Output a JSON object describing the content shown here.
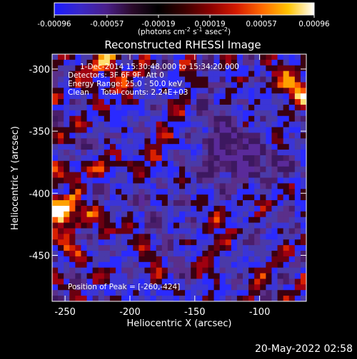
{
  "colorbar": {
    "ticks": [
      "-0.00096",
      "-0.00057",
      "-0.00019",
      "0.00019",
      "0.00057",
      "0.00096"
    ],
    "unit_parts": [
      "(photons cm",
      "-2",
      " s",
      "-1",
      " asec",
      "-2",
      ")"
    ],
    "colors": [
      "#1a1aff",
      "#3a28c8",
      "#4a1f8a",
      "#2a0a2a",
      "#000000",
      "#3a0000",
      "#8a0000",
      "#d41a00",
      "#ff6a00",
      "#ffc400",
      "#ffffff"
    ]
  },
  "image": {
    "title": "Reconstructed RHESSI Image",
    "info": [
      "1-Dec-2014 15:30:48.000 to 15:34:20.000",
      "Detectors: 3F 6F 9F, Att 0",
      "Energy Range: 25.0 - 50.0 keV",
      "Clean     Total counts: 2.24E+03"
    ],
    "peak": "Position of Peak = [-260,-424]",
    "xlabel": "Heliocentric X (arcsec)",
    "ylabel": "Heliocentric Y (arcsec)",
    "xticks": [
      "-250",
      "-200",
      "-150",
      "-100"
    ],
    "yticks": [
      "-300",
      "-350",
      "-400",
      "-450"
    ],
    "footer": "20-May-2022 02:58"
  },
  "chart_data": {
    "type": "heatmap",
    "title": "Reconstructed RHESSI Image",
    "xlabel": "Heliocentric X (arcsec)",
    "ylabel": "Heliocentric Y (arcsec)",
    "xlim": [
      -260,
      -64
    ],
    "ylim": [
      -487,
      -288
    ],
    "xticks": [
      -250,
      -200,
      -150,
      -100
    ],
    "yticks": [
      -300,
      -350,
      -400,
      -450
    ],
    "colorbar_range": [
      -0.00096,
      0.00096
    ],
    "colorbar_ticks": [
      -0.00096,
      -0.00057,
      -0.00019,
      0.00019,
      0.00057,
      0.00096
    ],
    "peak_position": [
      -260,
      -424
    ]
  }
}
